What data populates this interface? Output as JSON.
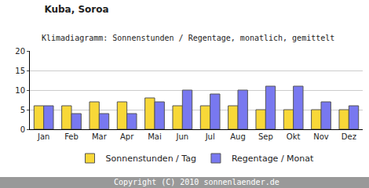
{
  "chart_data": {
    "type": "bar",
    "title": "Kuba, Soroa",
    "subtitle": "Klimadiagramm: Sonnenstunden / Regentage, monatlich, gemittelt",
    "categories": [
      "Jan",
      "Feb",
      "Mar",
      "Apr",
      "Mai",
      "Jun",
      "Jul",
      "Aug",
      "Sep",
      "Okt",
      "Nov",
      "Dez"
    ],
    "series": [
      {
        "name": "Sonnenstunden / Tag",
        "color": "#f8d838",
        "values": [
          6,
          6,
          7,
          7,
          8,
          6,
          6,
          6,
          5,
          5,
          5,
          5
        ]
      },
      {
        "name": "Regentage / Monat",
        "color": "#7878f0",
        "values": [
          6,
          4,
          4,
          4,
          7,
          10,
          9,
          10,
          11,
          11,
          7,
          6
        ]
      }
    ],
    "ylim": [
      0,
      20
    ],
    "yticks": [
      0,
      5,
      10,
      15,
      20
    ],
    "grid": true,
    "legend": "bottom",
    "annotations": [
      "Copyright (C) 2010 sonnenlaender.de"
    ]
  }
}
